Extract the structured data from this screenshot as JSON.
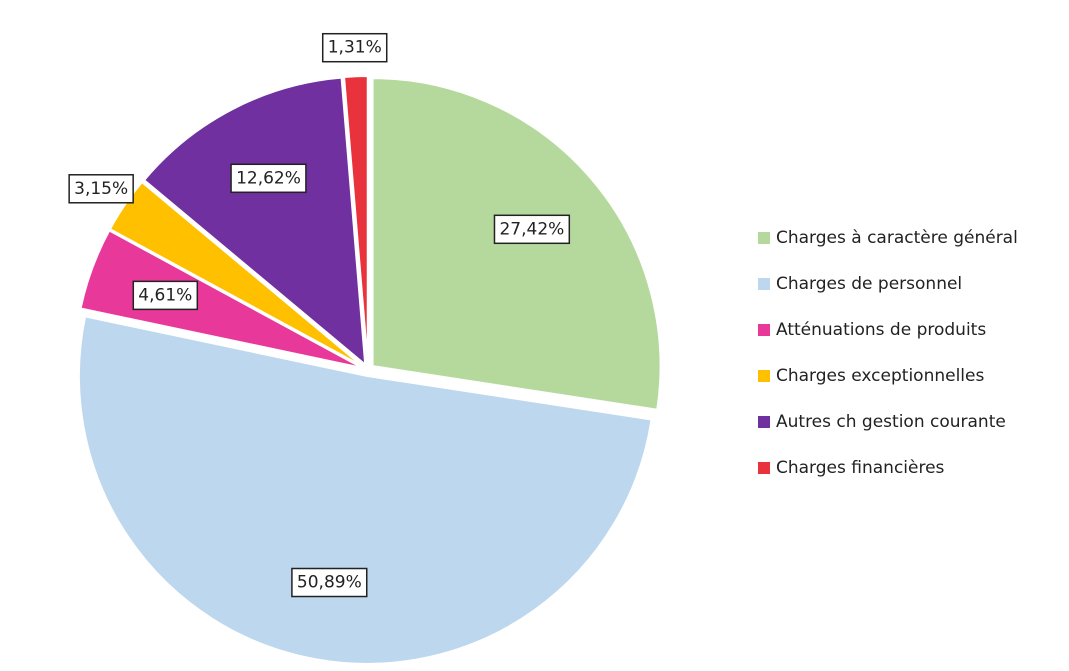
{
  "chart_data": {
    "type": "pie",
    "categories": [
      "Charges à caractère général",
      "Charges de personnel",
      "Atténuations de produits",
      "Charges exceptionnelles",
      "Autres ch gestion courante",
      "Charges financières"
    ],
    "values": [
      27.42,
      50.89,
      4.61,
      3.15,
      12.62,
      1.31
    ],
    "value_labels": [
      "27,42%",
      "50,89%",
      "4,61%",
      "3,15%",
      "12,62%",
      "1,31%"
    ],
    "colors": [
      "#b5d99c",
      "#bdd7ee",
      "#e8399a",
      "#ffc000",
      "#7030a0",
      "#e8323c"
    ],
    "legend": "right"
  }
}
